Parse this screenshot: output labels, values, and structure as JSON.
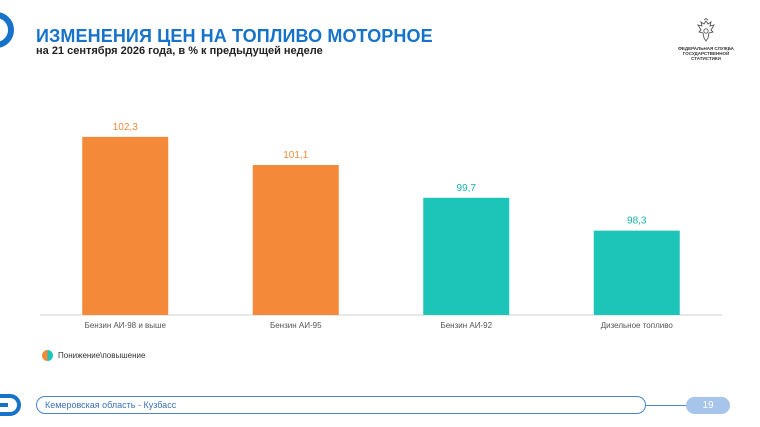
{
  "header": {
    "title": "ИЗМЕНЕНИЯ ЦЕН НА ТОПЛИВО МОТОРНОЕ",
    "subtitle": "на 21 сентября 2026 года, в % к предыдущей неделе"
  },
  "emblem": {
    "name": "eagle-emblem-icon",
    "text": "ФЕДЕРАЛЬНАЯ СЛУЖБА ГОСУДАРСТВЕННОЙ СТАТИСТИКИ"
  },
  "chart_data": {
    "type": "bar",
    "categories": [
      "Бензин АИ-98 и выше",
      "Бензин АИ-95",
      "Бензин АИ-92",
      "Дизельное топливо"
    ],
    "values": [
      102.3,
      101.1,
      99.7,
      98.3
    ],
    "value_labels": [
      "102,3",
      "101,1",
      "99,7",
      "98,3"
    ],
    "title": "",
    "xlabel": "",
    "ylabel": "",
    "ylim": [
      94.7,
      104.3
    ],
    "grid": false,
    "legend": "bottom-left",
    "colors": {
      "increase": "#f5893a",
      "decrease": "#1cc5b8",
      "increase_label": "#f08a3c",
      "decrease_label": "#15b3a8"
    }
  },
  "legend": {
    "label": "Понижение\\повышение"
  },
  "footer": {
    "region": "Кемеровская область - Кузбасс",
    "page": "19"
  },
  "colors": {
    "accent": "#1673c9",
    "footer_border": "#4a86c9",
    "page_pill": "#a7c4ea"
  }
}
